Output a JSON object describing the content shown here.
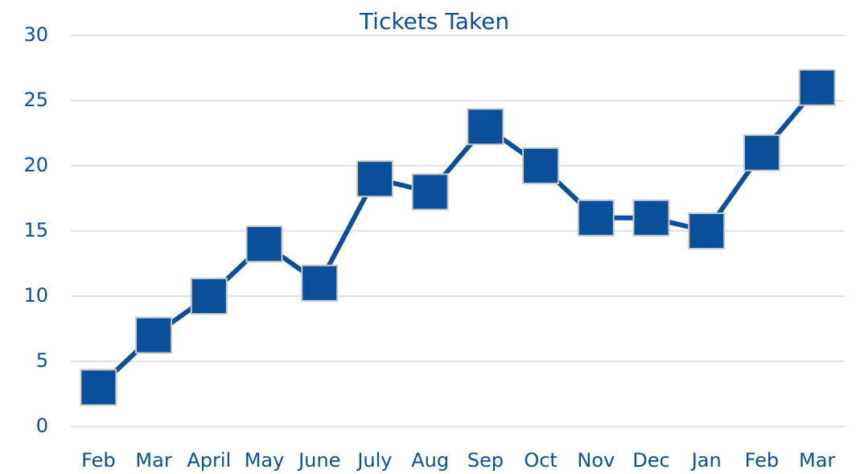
{
  "chart_data": {
    "type": "line",
    "title": "Tickets Taken",
    "categories": [
      "Feb",
      "Mar",
      "April",
      "May",
      "June",
      "July",
      "Aug",
      "Sep",
      "Oct",
      "Nov",
      "Dec",
      "Jan",
      "Feb",
      "Mar"
    ],
    "series": [
      {
        "name": "Tickets Taken",
        "color": "#0a4f9a",
        "values": [
          3,
          7,
          10,
          14,
          11,
          19,
          18,
          23,
          20,
          16,
          16,
          15,
          21,
          26
        ]
      }
    ],
    "ylim": [
      0,
      30
    ],
    "yticks": [
      0,
      5,
      10,
      15,
      20,
      25,
      30
    ],
    "grid": true
  }
}
